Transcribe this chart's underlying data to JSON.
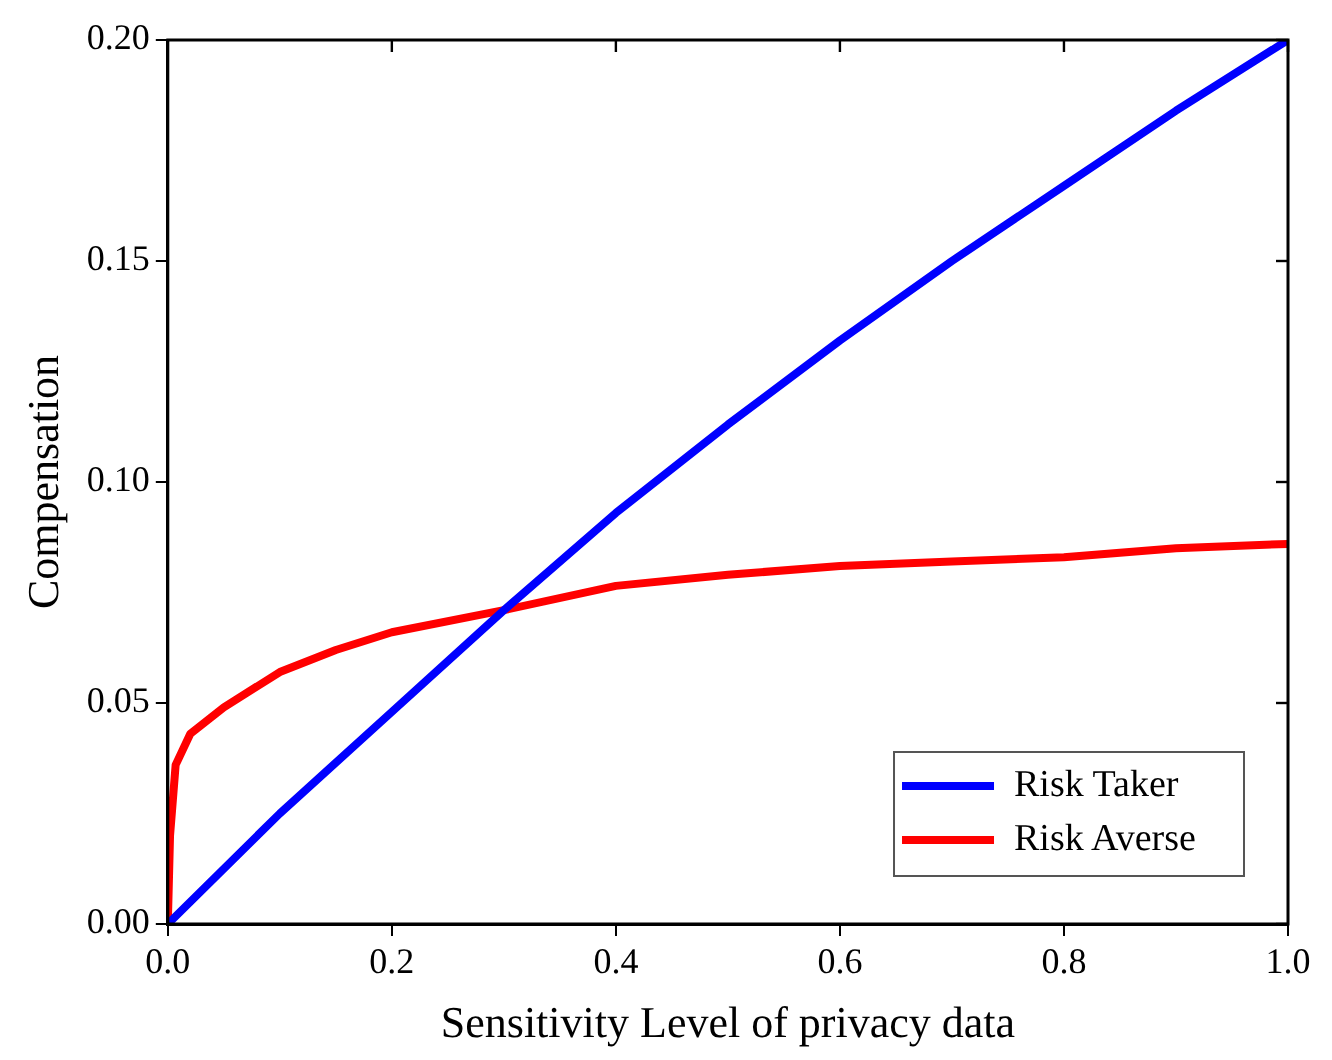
{
  "chart_data": {
    "type": "line",
    "xlabel": "Sensitivity Level of privacy data",
    "ylabel": "Compensation",
    "xlim": [
      0,
      1
    ],
    "xticks": [
      {
        "value": 0,
        "label": "0.0"
      },
      0.2,
      0.4,
      0.6,
      0.8,
      {
        "value": 1,
        "label": "1.0"
      }
    ],
    "ylim": [
      0,
      0.2
    ],
    "yticks": [
      {
        "value": 0,
        "label": "0.00"
      },
      0.05,
      {
        "value": 0.1,
        "label": "0.10"
      },
      0.15,
      {
        "value": 0.2,
        "label": "0.20"
      }
    ],
    "legend": "bottom right",
    "grid": false,
    "marker": "none",
    "line_style": "solid",
    "series": [
      {
        "name": "Risk Taker",
        "color": "#0000ff",
        "x": [
          0,
          0.1,
          0.2,
          0.3,
          0.4,
          0.5,
          0.6,
          0.7,
          0.8,
          0.9,
          1
        ],
        "values": [
          0,
          0.025,
          0.048,
          0.071,
          0.093,
          0.113,
          0.132,
          0.15,
          0.167,
          0.184,
          0.2
        ]
      },
      {
        "name": "Risk Averse",
        "color": "#ff0000",
        "x": [
          0,
          0.002,
          0.007,
          0.02,
          0.05,
          0.1,
          0.15,
          0.2,
          0.3,
          0.4,
          0.5,
          0.6,
          0.7,
          0.8,
          0.9,
          1
        ],
        "values": [
          0,
          0.02,
          0.036,
          0.043,
          0.049,
          0.057,
          0.062,
          0.066,
          0.071,
          0.0765,
          0.079,
          0.081,
          0.082,
          0.083,
          0.085,
          0.086
        ]
      }
    ]
  }
}
